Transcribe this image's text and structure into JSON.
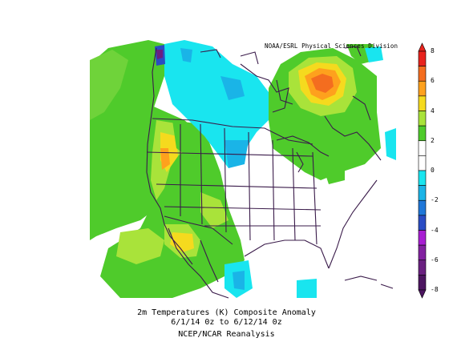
{
  "credit": "NOAA/ESRL Physical Sciences Division",
  "caption": {
    "line1": "2m Temperatures (K)   Composite Anomaly",
    "line2": "6/1/14 0z  to 6/12/14 0z",
    "line3": "NCEP/NCAR Reanalysis"
  },
  "colorbar": {
    "labels": [
      "8",
      "6",
      "4",
      "2",
      "0",
      "-2",
      "-4",
      "-6",
      "-8"
    ],
    "colors": [
      "#e8231d",
      "#f46d1f",
      "#fea11d",
      "#f5da1e",
      "#a9e33a",
      "#4fcb2b",
      "#ffffff",
      "#ffffff",
      "#19e5ef",
      "#1ab4e7",
      "#1f77d8",
      "#2a4cc4",
      "#a81ed2",
      "#8221a0",
      "#6a2080",
      "#4c1560"
    ]
  }
}
